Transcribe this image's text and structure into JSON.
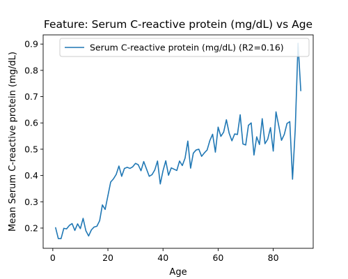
{
  "chart_data": {
    "type": "line",
    "title": "Feature: Serum C-reactive protein (mg/dL) vs Age",
    "xlabel": "Age",
    "ylabel": "Mean Serum C-reactive protein (mg/dL)",
    "xlim": [
      -3.5,
      94.5
    ],
    "ylim": [
      0.123,
      0.935
    ],
    "xticks": [
      0,
      20,
      40,
      60,
      80
    ],
    "yticks": [
      0.2,
      0.3,
      0.4,
      0.5,
      0.6,
      0.7,
      0.8,
      0.9
    ],
    "xtick_labels": [
      "0",
      "20",
      "40",
      "60",
      "80"
    ],
    "ytick_labels": [
      "0.2",
      "0.3",
      "0.4",
      "0.5",
      "0.6",
      "0.7",
      "0.8",
      "0.9"
    ],
    "grid": false,
    "legend_position": "top-right",
    "series": [
      {
        "name": "Serum C-reactive protein (mg/dL) (R2=0.16)",
        "color": "#1f77b4",
        "x": [
          1,
          2,
          3,
          4,
          5,
          6,
          7,
          8,
          9,
          10,
          11,
          12,
          13,
          14,
          15,
          16,
          17,
          18,
          19,
          20,
          21,
          22,
          23,
          24,
          25,
          26,
          27,
          28,
          29,
          30,
          31,
          32,
          33,
          34,
          35,
          36,
          37,
          38,
          39,
          40,
          41,
          42,
          43,
          44,
          45,
          46,
          47,
          48,
          49,
          50,
          51,
          52,
          53,
          54,
          55,
          56,
          57,
          58,
          59,
          60,
          61,
          62,
          63,
          64,
          65,
          66,
          67,
          68,
          69,
          70,
          71,
          72,
          73,
          74,
          75,
          76,
          77,
          78,
          79,
          80,
          81,
          82,
          83,
          84,
          85,
          86,
          87,
          88,
          89,
          90
        ],
        "y": [
          0.202,
          0.16,
          0.16,
          0.199,
          0.197,
          0.21,
          0.217,
          0.191,
          0.216,
          0.198,
          0.237,
          0.19,
          0.17,
          0.193,
          0.204,
          0.207,
          0.228,
          0.288,
          0.271,
          0.323,
          0.375,
          0.387,
          0.404,
          0.436,
          0.397,
          0.427,
          0.431,
          0.427,
          0.433,
          0.446,
          0.441,
          0.418,
          0.453,
          0.425,
          0.397,
          0.403,
          0.421,
          0.455,
          0.368,
          0.418,
          0.456,
          0.401,
          0.429,
          0.424,
          0.419,
          0.455,
          0.438,
          0.466,
          0.531,
          0.428,
          0.485,
          0.497,
          0.5,
          0.473,
          0.486,
          0.497,
          0.533,
          0.557,
          0.489,
          0.584,
          0.549,
          0.565,
          0.612,
          0.561,
          0.532,
          0.558,
          0.556,
          0.631,
          0.52,
          0.516,
          0.591,
          0.6,
          0.478,
          0.547,
          0.518,
          0.616,
          0.521,
          0.538,
          0.582,
          0.493,
          0.642,
          0.589,
          0.534,
          0.556,
          0.598,
          0.605,
          0.386,
          0.58,
          0.903,
          0.722
        ]
      }
    ]
  }
}
